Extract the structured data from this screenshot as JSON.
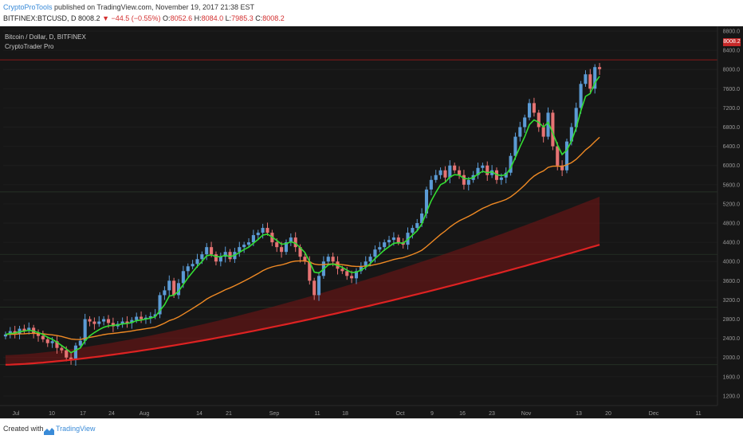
{
  "header": {
    "publisher": "CryptoProTools",
    "published_text": "published on TradingView.com, November 19, 2017 21:38 EST",
    "symbol": "BITFINEX:BTCUSD, D",
    "last": "8008.2",
    "change": "▼ −44.5 (−0.55%)",
    "o_label": "O:",
    "o_value": "8052.6",
    "h_label": "H:",
    "h_value": "8084.0",
    "l_label": "L:",
    "l_value": "7985.3",
    "c_label": "C:",
    "c_value": "8008.2"
  },
  "legend": {
    "title": "Bitcoin / Dollar, D, BITFINEX",
    "indicator": "CryptoTrader Pro"
  },
  "price_tag": "8008.2",
  "footer": {
    "created": "Created with",
    "brand": "TradingView"
  },
  "colors": {
    "up": "#5b9bd5",
    "down": "#e57373",
    "ema_fast": "#33dd33",
    "ema_mid": "#f08a24",
    "ema_slow": "#dd2222",
    "band": "#7a1515"
  },
  "chart_data": {
    "type": "candlestick",
    "y_ticks": [
      1200,
      1600,
      2000,
      2400,
      2800,
      3200,
      3600,
      4000,
      4400,
      4800,
      5200,
      5600,
      6000,
      6400,
      6800,
      7200,
      7600,
      8000,
      8400,
      8800
    ],
    "y_tick_labels": [
      "1200.0",
      "1600.0",
      "2000.0",
      "2400.0",
      "2800.0",
      "3200.0",
      "3600.0",
      "4000.0",
      "4400.0",
      "4800.0",
      "5200.0",
      "5600.0",
      "6000.0",
      "6400.0",
      "6800.0",
      "7200.0",
      "7600.0",
      "8000.0",
      "8400.0",
      "8800.0"
    ],
    "x_labels": [
      "Jul",
      "10",
      "17",
      "24",
      "Aug",
      "14",
      "21",
      "Sep",
      "11",
      "18",
      "Oct",
      "9",
      "16",
      "23",
      "Nov",
      "13",
      "20",
      "Dec",
      "11"
    ],
    "ylim": [
      1000,
      8900
    ],
    "closes": [
      2480,
      2550,
      2500,
      2600,
      2560,
      2620,
      2500,
      2450,
      2380,
      2300,
      2340,
      2200,
      2150,
      2000,
      1950,
      2250,
      2350,
      2800,
      2750,
      2700,
      2750,
      2800,
      2720,
      2650,
      2700,
      2750,
      2720,
      2780,
      2850,
      2800,
      2830,
      2860,
      2900,
      3300,
      3400,
      3600,
      3300,
      3550,
      3800,
      3900,
      3950,
      4050,
      4150,
      4300,
      4150,
      4000,
      4100,
      4200,
      4050,
      4200,
      4300,
      4350,
      4400,
      4550,
      4600,
      4700,
      4600,
      4400,
      4300,
      4200,
      4400,
      4500,
      4300,
      4100,
      4000,
      3600,
      3300,
      3700,
      4000,
      4100,
      4000,
      3850,
      3800,
      3700,
      3650,
      3800,
      3900,
      4000,
      4100,
      4250,
      4300,
      4400,
      4450,
      4500,
      4400,
      4350,
      4600,
      4700,
      4800,
      5000,
      5500,
      5700,
      5800,
      5900,
      5750,
      6000,
      5900,
      5800,
      5600,
      5700,
      5800,
      5950,
      6000,
      5800,
      5900,
      5700,
      5750,
      5850,
      6200,
      6600,
      6800,
      7000,
      7300,
      7100,
      6800,
      6600,
      7100,
      6400,
      6000,
      5900,
      6500,
      6800,
      7200,
      7700,
      7900,
      7600,
      8050,
      8008
    ],
    "ema_fast": [
      2480,
      2500,
      2510,
      2540,
      2550,
      2570,
      2550,
      2520,
      2480,
      2420,
      2380,
      2320,
      2250,
      2180,
      2100,
      2150,
      2200,
      2350,
      2450,
      2520,
      2580,
      2630,
      2660,
      2670,
      2680,
      2700,
      2710,
      2730,
      2770,
      2780,
      2800,
      2820,
      2850,
      2980,
      3100,
      3280,
      3300,
      3380,
      3520,
      3660,
      3780,
      3900,
      4000,
      4120,
      4140,
      4100,
      4100,
      4130,
      4100,
      4130,
      4190,
      4250,
      4300,
      4380,
      4460,
      4550,
      4570,
      4510,
      4440,
      4360,
      4370,
      4410,
      4380,
      4290,
      4190,
      4000,
      3780,
      3760,
      3840,
      3930,
      3950,
      3920,
      3880,
      3820,
      3770,
      3780,
      3820,
      3880,
      3960,
      4060,
      4150,
      4240,
      4310,
      4380,
      4390,
      4380,
      4460,
      4550,
      4640,
      4780,
      5030,
      5260,
      5440,
      5600,
      5650,
      5760,
      5810,
      5800,
      5730,
      5720,
      5750,
      5820,
      5880,
      5850,
      5870,
      5810,
      5790,
      5810,
      5950,
      6170,
      6390,
      6600,
      6850,
      6950,
      6900,
      6800,
      6900,
      6680,
      6430,
      6230,
      6320,
      6510,
      6780,
      7140,
      7440,
      7500,
      7720,
      7860
    ]
  }
}
